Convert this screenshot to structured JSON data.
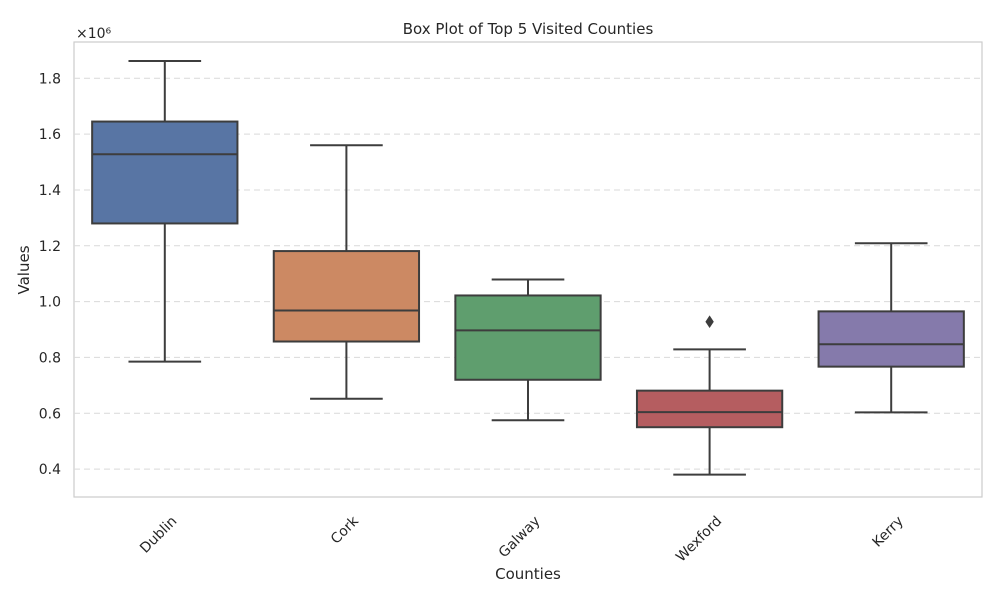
{
  "chart_data": {
    "type": "box",
    "title": "Box Plot of Top 5 Visited Counties",
    "xlabel": "Counties",
    "ylabel": "Values",
    "y_scale_label": "×10⁶",
    "y_scale_factor": 1000000,
    "ylim": [
      300000,
      1930000
    ],
    "yticks": [
      400000,
      600000,
      800000,
      1000000,
      1200000,
      1400000,
      1600000,
      1800000
    ],
    "ytick_labels": [
      "0.4",
      "0.6",
      "0.8",
      "1.0",
      "1.2",
      "1.4",
      "1.6",
      "1.8"
    ],
    "grid": "y-dashed",
    "categories": [
      "Dublin",
      "Cork",
      "Galway",
      "Wexford",
      "Kerry"
    ],
    "boxes": [
      {
        "category": "Dublin",
        "whisker_low": 785000,
        "q1": 1280000,
        "median": 1528000,
        "q3": 1645000,
        "whisker_high": 1862000,
        "outliers": [],
        "color": "#5875a4"
      },
      {
        "category": "Cork",
        "whisker_low": 652000,
        "q1": 857000,
        "median": 968000,
        "q3": 1181000,
        "whisker_high": 1560000,
        "outliers": [],
        "color": "#cc8963"
      },
      {
        "category": "Galway",
        "whisker_low": 575000,
        "q1": 720000,
        "median": 897000,
        "q3": 1022000,
        "whisker_high": 1079000,
        "outliers": [],
        "color": "#5f9e6e"
      },
      {
        "category": "Wexford",
        "whisker_low": 380000,
        "q1": 550000,
        "median": 604000,
        "q3": 681000,
        "whisker_high": 829000,
        "outliers": [
          928000
        ],
        "color": "#b55d60"
      },
      {
        "category": "Kerry",
        "whisker_low": 603000,
        "q1": 767000,
        "median": 847000,
        "q3": 965000,
        "whisker_high": 1209000,
        "outliers": [],
        "color": "#857aab"
      }
    ]
  }
}
